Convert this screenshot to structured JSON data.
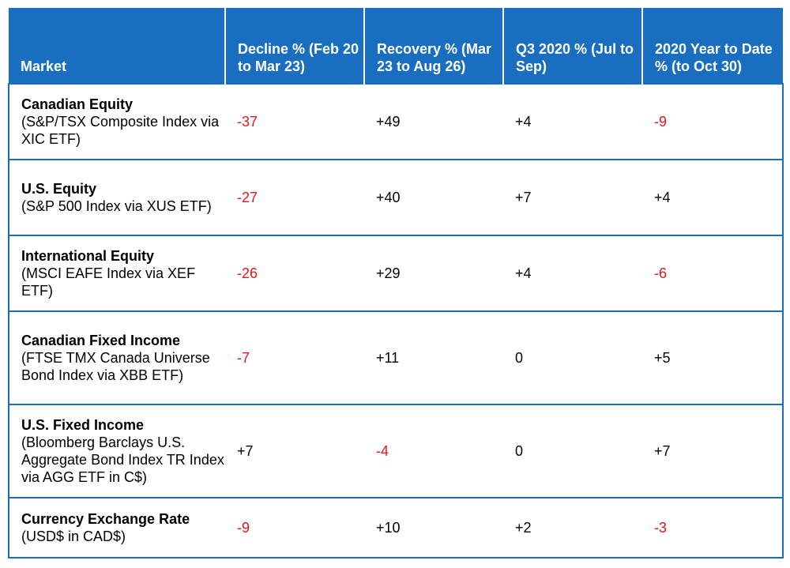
{
  "colors": {
    "header_bg": "#1a6ec0",
    "header_text": "#ffffff",
    "negative": "#e8141c",
    "border": "#1a6ec0"
  },
  "headers": [
    "Market",
    "Decline % (Feb 20 to Mar 23)",
    "Recovery % (Mar 23 to Aug 26)",
    "Q3 2020 % (Jul to Sep)",
    "2020 Year to Date % (to Oct 30)"
  ],
  "rows": [
    {
      "name": "Canadian Equity",
      "sub": "(S&P/TSX Composite Index via XIC ETF)",
      "values": [
        "-37",
        "+49",
        "+4",
        "-9"
      ]
    },
    {
      "name": "U.S. Equity",
      "sub": "(S&P 500 Index via XUS ETF)",
      "values": [
        "-27",
        "+40",
        "+7",
        "+4"
      ]
    },
    {
      "name": "International Equity",
      "sub": "(MSCI EAFE Index via XEF ETF)",
      "values": [
        "-26",
        "+29",
        "+4",
        "-6"
      ]
    },
    {
      "name": "Canadian Fixed Income",
      "sub": "(FTSE TMX Canada Universe Bond Index via XBB ETF)",
      "values": [
        "-7",
        "+11",
        "0",
        "+5"
      ]
    },
    {
      "name": "U.S. Fixed Income",
      "sub": "(Bloomberg Barclays U.S. Aggregate Bond Index TR Index via AGG ETF in C$)",
      "values": [
        "+7",
        "-4",
        "0",
        "+7"
      ]
    },
    {
      "name": "Currency Exchange Rate",
      "sub": "(USD$ in CAD$)",
      "values": [
        "-9",
        "+10",
        "+2",
        "-3"
      ]
    }
  ]
}
